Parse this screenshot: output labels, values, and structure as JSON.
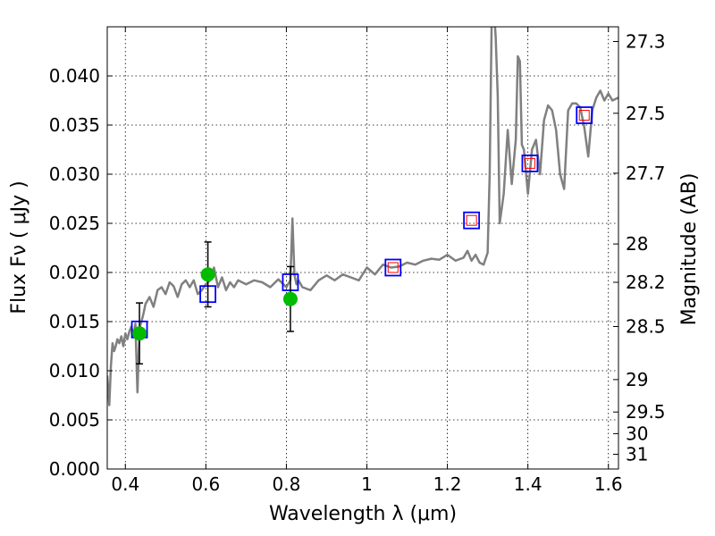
{
  "chart_data": {
    "type": "scatter",
    "xlabel": "Wavelength  λ (μm)",
    "ylabel": "Flux  Fν  ( μJy )",
    "ylabel_right": "Magnitude (AB)",
    "xlim": [
      0.355,
      1.625
    ],
    "ylim": [
      0.0,
      0.045
    ],
    "grid": true,
    "x_ticks": [
      0.4,
      0.6,
      0.8,
      1.0,
      1.2,
      1.4,
      1.6
    ],
    "x_tick_labels": [
      "0.4",
      "0.6",
      "0.8",
      "1",
      "1.2",
      "1.4",
      "1.6"
    ],
    "y_ticks": [
      0.0,
      0.005,
      0.01,
      0.015,
      0.02,
      0.025,
      0.03,
      0.035,
      0.04
    ],
    "y_tick_labels": [
      "0.000",
      "0.005",
      "0.010",
      "0.015",
      "0.020",
      "0.025",
      "0.030",
      "0.035",
      "0.040"
    ],
    "right_ticks": [
      {
        "label": "27.3",
        "flux": 0.0435
      },
      {
        "label": "27.5",
        "flux": 0.0362
      },
      {
        "label": "27.7",
        "flux": 0.0301
      },
      {
        "label": "28",
        "flux": 0.0229
      },
      {
        "label": "28.2",
        "flux": 0.019
      },
      {
        "label": "28.5",
        "flux": 0.0145
      },
      {
        "label": "29",
        "flux": 0.0091
      },
      {
        "label": "29.5",
        "flux": 0.0058
      },
      {
        "label": "30",
        "flux": 0.0036
      },
      {
        "label": "31",
        "flux": 0.0015
      }
    ],
    "series": [
      {
        "kind": "spectrum_line",
        "color": "#808080",
        "x": [
          0.355,
          0.36,
          0.364,
          0.368,
          0.372,
          0.376,
          0.38,
          0.385,
          0.39,
          0.395,
          0.4,
          0.405,
          0.41,
          0.415,
          0.42,
          0.425,
          0.43,
          0.433,
          0.436,
          0.44,
          0.445,
          0.45,
          0.46,
          0.47,
          0.48,
          0.49,
          0.5,
          0.51,
          0.52,
          0.53,
          0.54,
          0.55,
          0.56,
          0.57,
          0.58,
          0.59,
          0.6,
          0.61,
          0.62,
          0.63,
          0.64,
          0.65,
          0.66,
          0.67,
          0.68,
          0.7,
          0.72,
          0.74,
          0.76,
          0.78,
          0.8,
          0.81,
          0.815,
          0.82,
          0.825,
          0.83,
          0.84,
          0.86,
          0.88,
          0.9,
          0.92,
          0.94,
          0.96,
          0.98,
          1.0,
          1.02,
          1.04,
          1.06,
          1.08,
          1.1,
          1.12,
          1.14,
          1.16,
          1.18,
          1.2,
          1.22,
          1.24,
          1.25,
          1.26,
          1.27,
          1.28,
          1.29,
          1.3,
          1.305,
          1.31,
          1.315,
          1.32,
          1.325,
          1.33,
          1.34,
          1.35,
          1.36,
          1.37,
          1.375,
          1.38,
          1.385,
          1.39,
          1.4,
          1.41,
          1.42,
          1.43,
          1.44,
          1.45,
          1.46,
          1.47,
          1.48,
          1.49,
          1.5,
          1.51,
          1.52,
          1.53,
          1.54,
          1.55,
          1.56,
          1.57,
          1.58,
          1.59,
          1.6,
          1.61,
          1.625
        ],
        "y": [
          0.0095,
          0.0065,
          0.0105,
          0.0128,
          0.012,
          0.0125,
          0.0132,
          0.0128,
          0.0135,
          0.0125,
          0.0138,
          0.0132,
          0.014,
          0.0145,
          0.0135,
          0.0148,
          0.0078,
          0.0115,
          0.0145,
          0.015,
          0.0158,
          0.0168,
          0.0175,
          0.0165,
          0.0182,
          0.0185,
          0.0178,
          0.019,
          0.0186,
          0.0175,
          0.0188,
          0.0192,
          0.0185,
          0.0192,
          0.0178,
          0.0182,
          0.0188,
          0.0192,
          0.0205,
          0.0185,
          0.0195,
          0.0182,
          0.019,
          0.0185,
          0.0192,
          0.0188,
          0.0192,
          0.019,
          0.0185,
          0.0193,
          0.0185,
          0.0192,
          0.0255,
          0.0198,
          0.0188,
          0.0192,
          0.0185,
          0.0182,
          0.0192,
          0.0197,
          0.0192,
          0.0198,
          0.0195,
          0.0192,
          0.0205,
          0.0198,
          0.0208,
          0.0205,
          0.0206,
          0.021,
          0.0208,
          0.0212,
          0.0214,
          0.0213,
          0.0218,
          0.0212,
          0.0215,
          0.0222,
          0.0212,
          0.0218,
          0.021,
          0.0208,
          0.022,
          0.03,
          0.0455,
          0.047,
          0.044,
          0.038,
          0.025,
          0.028,
          0.0345,
          0.029,
          0.0335,
          0.042,
          0.0415,
          0.033,
          0.0325,
          0.028,
          0.0325,
          0.0335,
          0.03,
          0.0355,
          0.037,
          0.0365,
          0.0345,
          0.03,
          0.0285,
          0.0365,
          0.0372,
          0.0372,
          0.0368,
          0.0348,
          0.0318,
          0.0365,
          0.0378,
          0.0385,
          0.0375,
          0.0382,
          0.0375,
          0.0378
        ]
      },
      {
        "kind": "open_squares",
        "name": "",
        "color": "#0000ff",
        "x": [
          0.435,
          0.605,
          0.81,
          1.065,
          1.26,
          1.405,
          1.54
        ],
        "y": [
          0.0142,
          0.0178,
          0.019,
          0.0205,
          0.0253,
          0.0311,
          0.036
        ]
      },
      {
        "kind": "small_open_squares",
        "name": "",
        "color": "#ff0000",
        "x": [
          1.065,
          1.26,
          1.405,
          1.54
        ],
        "y": [
          0.0205,
          0.0253,
          0.0311,
          0.036
        ]
      },
      {
        "kind": "filled_circles_with_errorbars",
        "name": "",
        "color": "#00bb00",
        "x": [
          0.435,
          0.605,
          0.81
        ],
        "y": [
          0.0138,
          0.0198,
          0.0173
        ],
        "yerr": [
          0.0031,
          0.0033,
          0.0033
        ]
      }
    ]
  }
}
